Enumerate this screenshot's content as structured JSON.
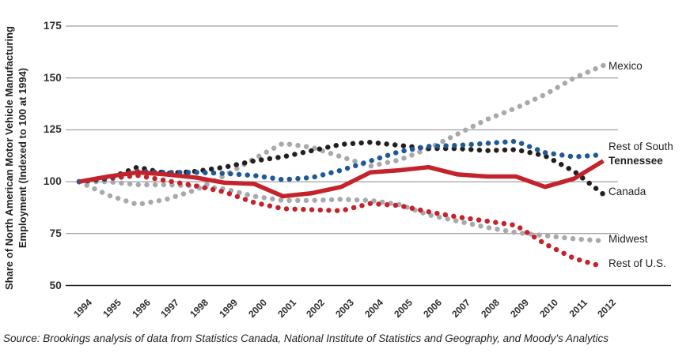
{
  "chart_data": {
    "type": "line",
    "title": "",
    "ylabel_lines": [
      "Share of North American Motor Vehicle Manufacturing",
      "Employment (Indexed to 100 at 1994)"
    ],
    "x": [
      1994,
      1995,
      1996,
      1997,
      1998,
      1999,
      2000,
      2001,
      2002,
      2003,
      2004,
      2005,
      2006,
      2007,
      2008,
      2009,
      2010,
      2011,
      2012
    ],
    "yticks": [
      175,
      150,
      125,
      100,
      75,
      50
    ],
    "ylim": [
      50,
      185
    ],
    "grid": "horizontal",
    "legend_position": "right-end-labels",
    "grid_color": "#8a8a8d",
    "axis_color": "#231f20",
    "series": [
      {
        "name": "Mexico",
        "color": "#a7a9ac",
        "style": "dotted",
        "bold_label": false,
        "values": [
          100,
          93.5,
          89,
          91.5,
          96,
          103,
          111,
          118.5,
          116.5,
          112,
          107.5,
          110.5,
          116,
          123,
          130,
          135.5,
          142,
          150,
          156
        ]
      },
      {
        "name": "Midwest",
        "color": "#a7a9ac",
        "style": "dotted",
        "bold_label": false,
        "values": [
          100,
          100,
          98.5,
          98.5,
          98,
          96.5,
          93,
          91,
          91,
          91.5,
          91,
          89,
          84,
          81,
          78,
          75.5,
          74,
          72.5,
          71.5
        ]
      },
      {
        "name": "Rest of U.S.",
        "color": "#c5232b",
        "style": "dotted",
        "bold_label": false,
        "values": [
          100,
          101.5,
          103,
          100.5,
          98,
          95,
          90,
          87,
          86.5,
          86,
          89.5,
          88.5,
          85.5,
          83,
          81,
          79,
          70,
          63,
          59
        ]
      },
      {
        "name": "Canada",
        "color": "#231f20",
        "style": "dotted",
        "bold_label": false,
        "values": [
          100,
          101.5,
          107,
          104,
          105,
          107,
          110,
          112,
          115,
          118,
          119,
          117.5,
          116,
          116,
          115,
          115.5,
          112.5,
          105,
          94
        ]
      },
      {
        "name": "Rest of South",
        "color": "#1f5a96",
        "style": "dotted",
        "bold_label": false,
        "values": [
          100,
          102,
          105,
          104.5,
          104.5,
          104,
          103,
          101,
          102,
          105.5,
          110,
          114.5,
          117,
          117.5,
          118.5,
          119.5,
          114,
          112,
          113
        ]
      },
      {
        "name": "Tennessee",
        "color": "#c5232b",
        "style": "solid",
        "bold_label": true,
        "values": [
          100,
          102.5,
          104.5,
          103.5,
          102,
          99.5,
          99,
          93,
          94.5,
          97.5,
          104.5,
          105.5,
          107,
          103.5,
          102.5,
          102.5,
          97.5,
          101.5,
          110
        ]
      }
    ]
  },
  "source": "Source: Brookings analysis of data from Statistics Canada, National Institute of Statistics and Geography, and Moody's Analytics"
}
